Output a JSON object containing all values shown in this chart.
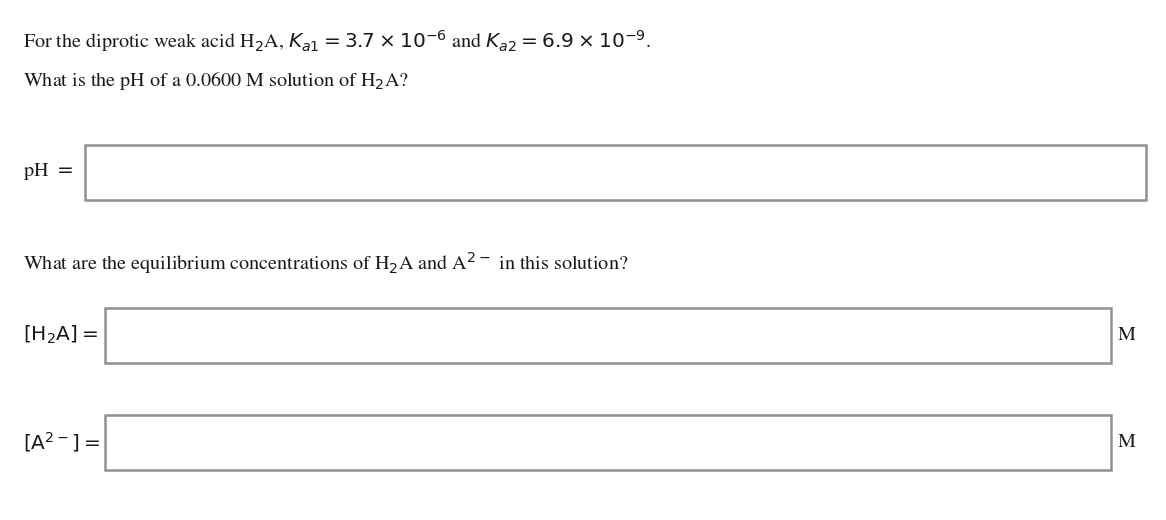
{
  "background_color": "#ffffff",
  "text_color": "#1a1a1a",
  "box_border_color": "#909090",
  "box_fill_color": "#ffffff",
  "font_size_text": 14.5,
  "font_size_label": 14.5,
  "font_size_unit": 14.5,
  "fig_width": 11.66,
  "fig_height": 5.2,
  "dpi": 100
}
